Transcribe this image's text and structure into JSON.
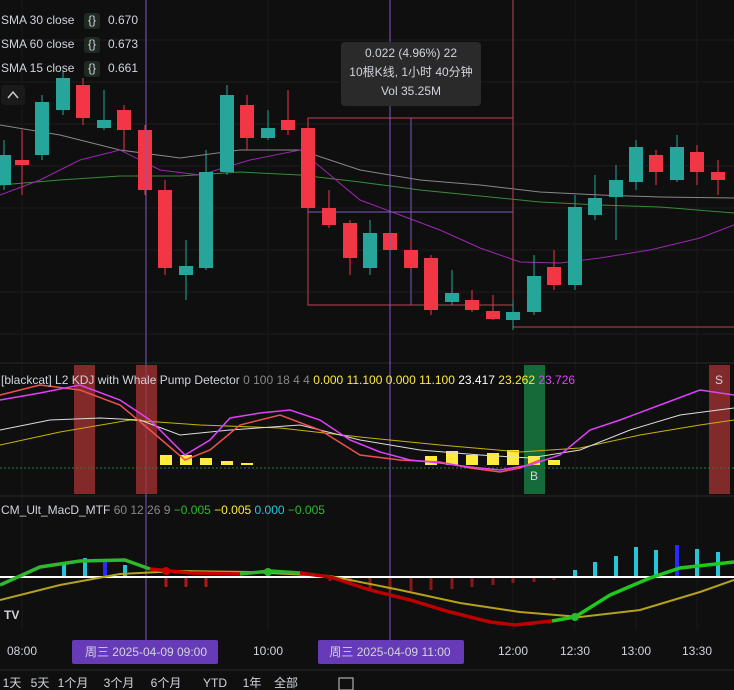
{
  "legend": [
    {
      "name": "SMA 30 close",
      "value": "0.670"
    },
    {
      "name": "SMA 60 close",
      "value": "0.673"
    },
    {
      "name": "SMA 15 close",
      "value": "0.661"
    }
  ],
  "tooltip": {
    "change": "0.022 (4.96%) 22",
    "bars": "10根K线, 1小时 40分钟",
    "volume": "Vol 35.25M"
  },
  "kdj": {
    "title": "[blackcat] L2 KDJ with Whale Pump Detector",
    "params": "0 100 18 4 4",
    "values": [
      "0.000",
      "11.100",
      "0.000",
      "11.100",
      "23.417",
      "23.262",
      "23.726"
    ],
    "buy_marker": "B",
    "sell_marker": "S"
  },
  "macd": {
    "title": "CM_Ult_MacD_MTF",
    "params": "60 12 26 9",
    "values": [
      "−0.005",
      "−0.005",
      "0.000",
      "−0.005"
    ]
  },
  "time_axis": [
    "08:00",
    "10:00",
    "12:00",
    "12:30",
    "13:00",
    "13:30"
  ],
  "crosshair_labels": [
    "周三 2025-04-09   09:00",
    "周三 2025-04-09   11:00"
  ],
  "toolbar": [
    "1天",
    "5天",
    "1个月",
    "3个月",
    "6个月",
    "YTD",
    "1年",
    "全部"
  ]
}
